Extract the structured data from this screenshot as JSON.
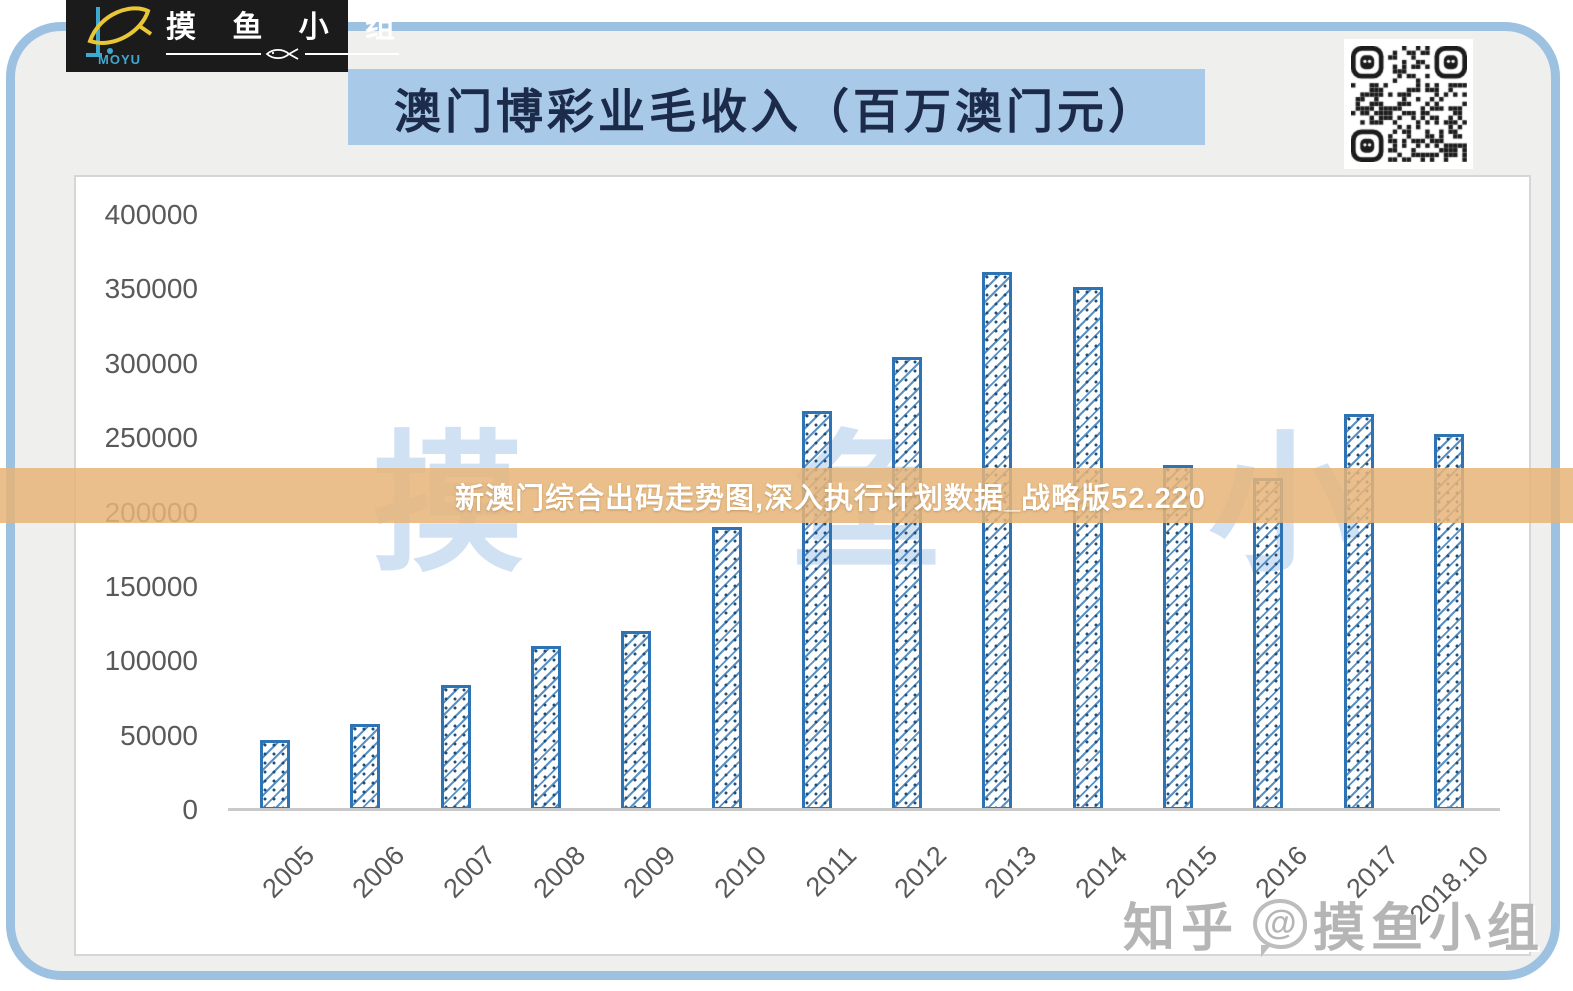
{
  "header": {
    "logo": {
      "brand_cn": "摸 鱼 小 组",
      "brand_en": "MOYU"
    },
    "title": "澳门博彩业毛收入（百万澳门元）"
  },
  "overlay_banner": {
    "text": "新澳门综合出码走势图,深入执行计划数据_战略版52.220"
  },
  "watermarks": {
    "center": "摸 鱼 小 组",
    "corner_prefix": "知乎",
    "corner_at": "@",
    "corner_handle": "摸鱼小组"
  },
  "colors": {
    "frame_border": "#9dc1e1",
    "frame_fill": "#efefee",
    "title_banner_bg": "#a9c9e8",
    "title_text": "#1c2b4a",
    "logo_bg": "#1b1b1b",
    "logo_fish_yellow": "#e8c636",
    "logo_blue": "#3fa9d0",
    "bar_border": "#2e74b5",
    "bar_hatch": "#3e7cb7",
    "bar_dot": "#1f4e79",
    "overlay_banner_bg": "#e6b478",
    "axis_label": "#595959",
    "axis_line": "#c9c9c9",
    "center_watermark": "#aac8eb"
  },
  "chart_data": {
    "type": "bar",
    "title": "澳门博彩业毛收入（百万澳门元）",
    "categories": [
      "2005",
      "2006",
      "2007",
      "2008",
      "2009",
      "2010",
      "2011",
      "2012",
      "2013",
      "2014",
      "2015",
      "2016",
      "2017",
      "2018.10"
    ],
    "values": [
      47000,
      57500,
      84000,
      110000,
      120500,
      190000,
      268000,
      304500,
      361500,
      351500,
      232000,
      223000,
      266500,
      252500
    ],
    "xlabel": "",
    "ylabel": "",
    "ylim": [
      0,
      400000
    ],
    "yticks": [
      0,
      50000,
      100000,
      150000,
      200000,
      250000,
      300000,
      350000,
      400000
    ],
    "grid": false,
    "legend": null,
    "bar_style": "blue-diagonal-hatch",
    "x_label_rotation_deg": 45
  }
}
